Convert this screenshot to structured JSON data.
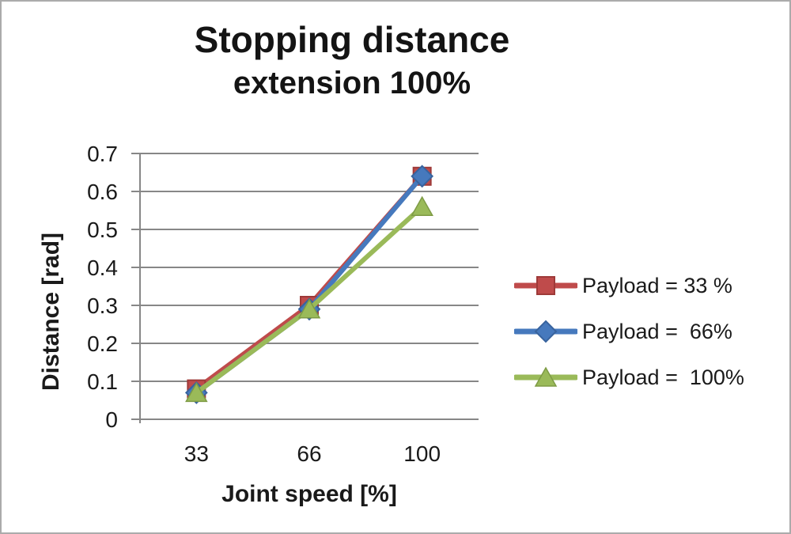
{
  "chart_data": {
    "type": "line",
    "title": "Stopping distance",
    "subtitle": "extension 100%",
    "xlabel": "Joint speed [%]",
    "ylabel": "Distance [rad]",
    "categories": [
      "33",
      "66",
      "100"
    ],
    "ylim": [
      0,
      0.7
    ],
    "y_ticks": [
      "0.7",
      "0.6",
      "0.5",
      "0.4",
      "0.3",
      "0.2",
      "0.1",
      "0"
    ],
    "grid": true,
    "legend_position": "right",
    "series": [
      {
        "name": "Payload = 33 %",
        "color": "#bf4b4b",
        "marker_edge": "#9e3a39",
        "marker": "square",
        "values": [
          0.08,
          0.3,
          0.64
        ]
      },
      {
        "name": "Payload =  66%",
        "color": "#4679bd",
        "marker_edge": "#38639e",
        "marker": "diamond",
        "values": [
          0.07,
          0.29,
          0.64
        ]
      },
      {
        "name": "Payload =  100%",
        "color": "#9aba59",
        "marker_edge": "#7e9b45",
        "marker": "triangle",
        "values": [
          0.07,
          0.29,
          0.56
        ]
      }
    ],
    "colors": {
      "grid": "#878787",
      "axis": "#878787",
      "text": "#1a1a1a",
      "title": "#141414",
      "background": "#ffffff",
      "frame_border": "#ababab"
    }
  }
}
